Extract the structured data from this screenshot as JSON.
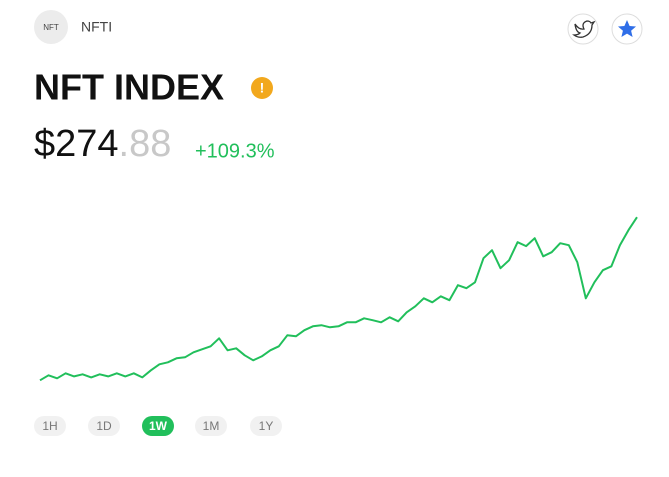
{
  "header": {
    "icon_label": "NFT",
    "ticker": "NFTI"
  },
  "title": "NFT INDEX",
  "price": {
    "main": "$274",
    "decimals": ".88",
    "change": "+109.3%"
  },
  "chart_data": {
    "type": "line",
    "color": "#21bf5b",
    "ylim": [
      114,
      290
    ],
    "values": [
      131.3,
      135.7,
      133.1,
      137.5,
      134.8,
      136.6,
      133.9,
      136.6,
      134.8,
      137.5,
      134.8,
      137.5,
      133.9,
      140.1,
      145.4,
      147.2,
      150.7,
      151.6,
      156.0,
      158.6,
      161.3,
      168.3,
      157.7,
      159.5,
      153.3,
      148.9,
      152.4,
      157.7,
      161.3,
      170.9,
      170.1,
      175.4,
      178.9,
      179.8,
      178.0,
      178.9,
      182.4,
      182.4,
      185.9,
      184.2,
      182.4,
      186.8,
      183.3,
      191.2,
      196.5,
      203.5,
      200.0,
      205.3,
      201.8,
      215.0,
      212.4,
      217.6,
      238.8,
      245.8,
      230.0,
      237.0,
      252.9,
      249.4,
      256.4,
      240.5,
      244.1,
      252.0,
      250.2,
      235.3,
      203.5,
      217.6,
      228.2,
      231.7,
      250.2,
      263.5,
      274.88
    ]
  },
  "ranges": {
    "options": [
      "1H",
      "1D",
      "1W",
      "1M",
      "1Y"
    ],
    "active": "1W"
  }
}
